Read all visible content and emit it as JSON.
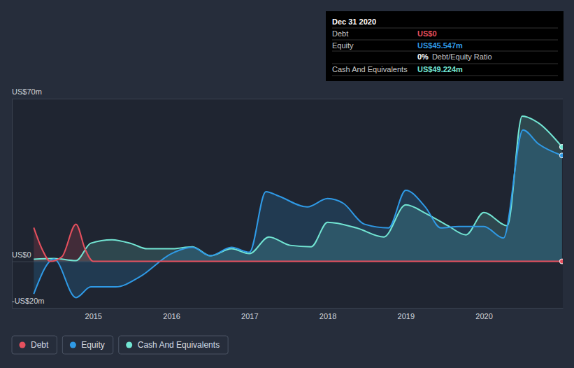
{
  "chart_data": {
    "type": "area",
    "xlim": [
      2013.96,
      2021.01
    ],
    "xticks": [
      2015,
      2016,
      2017,
      2018,
      2019,
      2020
    ],
    "ylim": [
      -20,
      70
    ],
    "yticks": [
      {
        "value": -20,
        "label": "-US$20m"
      },
      {
        "value": 0,
        "label": "US$0"
      },
      {
        "value": 70,
        "label": "US$70m"
      }
    ],
    "grid": true,
    "legend": "bottom",
    "series": [
      {
        "name": "Debt",
        "color": "#e6505e",
        "x": [
          2014.24,
          2014.35,
          2014.45,
          2014.6,
          2014.78,
          2014.9,
          2015.0,
          2016.0,
          2017.0,
          2018.0,
          2019.0,
          2020.0,
          2021.0
        ],
        "values": [
          14.5,
          5,
          0,
          2,
          16,
          5,
          0,
          0,
          0,
          0,
          0,
          0,
          0
        ]
      },
      {
        "name": "Equity",
        "color": "#2f9ae6",
        "x": [
          2014.24,
          2014.5,
          2014.78,
          2014.97,
          2015.29,
          2015.6,
          2016.0,
          2016.27,
          2016.5,
          2016.77,
          2017.0,
          2017.21,
          2017.38,
          2017.74,
          2018.0,
          2018.2,
          2018.47,
          2018.78,
          2019.0,
          2019.25,
          2019.45,
          2019.68,
          2020.0,
          2020.25,
          2020.5,
          2020.7,
          2021.0
        ],
        "values": [
          -14,
          1,
          -15.6,
          -11,
          -11,
          -6.6,
          3.3,
          6,
          2.4,
          6,
          3.9,
          30,
          28,
          23.4,
          27,
          25,
          16,
          14.4,
          30.6,
          23.4,
          14.4,
          15,
          15,
          10,
          56.5,
          50.5,
          45.547
        ]
      },
      {
        "name": "Cash And Equivalents",
        "color": "#72e5d3",
        "x": [
          2014.24,
          2014.5,
          2014.78,
          2014.97,
          2015.24,
          2015.5,
          2015.69,
          2016.0,
          2016.27,
          2016.5,
          2016.77,
          2017.0,
          2017.25,
          2017.52,
          2017.79,
          2018.0,
          2018.37,
          2018.72,
          2019.0,
          2019.27,
          2019.54,
          2019.77,
          2020.0,
          2020.3,
          2020.49,
          2020.7,
          2021.0
        ],
        "values": [
          0.9,
          1.2,
          0.3,
          7.8,
          9.3,
          7.5,
          5.4,
          5.4,
          6.3,
          2.4,
          5.4,
          3.3,
          10.5,
          6.9,
          6.3,
          16.8,
          14.4,
          10.5,
          24.3,
          20.4,
          15.3,
          11.4,
          21,
          15.3,
          62.5,
          59.5,
          49.224
        ]
      }
    ],
    "annotation": {
      "title": "Dec 31 2020",
      "rows": [
        {
          "label": "Debt",
          "value": "US$0",
          "color": "#e6505e"
        },
        {
          "label": "Equity",
          "value": "US$45.547m",
          "color": "#2f9ae6"
        },
        {
          "value": "0%",
          "text": "Debt/Equity Ratio",
          "color": "#ffffff"
        },
        {
          "label": "Cash And Equivalents",
          "value": "US$49.224m",
          "color": "#72e5d3"
        }
      ]
    }
  }
}
